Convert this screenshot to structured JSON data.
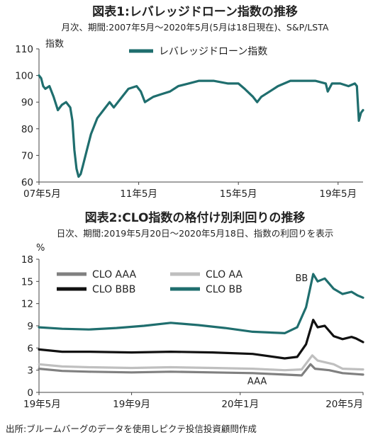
{
  "charts": [
    {
      "title": "図表1:レバレッジドローン指数の推移",
      "subtitle": "月次、期間:2007年5月〜2020年5月(5月は18日現在)、S&P/LSTA",
      "unit_label": "指数"
    },
    {
      "title": "図表2:CLO指数の格付け別利回りの推移",
      "subtitle": "日次、期間:2019年5月20日〜2020年5月18日、指数の利回りを表示",
      "unit_label": "%"
    }
  ],
  "source": "出所:ブルームバーグのデータを使用しピクテ投信投資顧問作成",
  "chart_data": [
    {
      "type": "line",
      "ylim": [
        60,
        110
      ],
      "yticks": [
        60,
        70,
        80,
        90,
        100,
        110
      ],
      "x_range": [
        "2007-05",
        "2020-05"
      ],
      "xticks": [
        {
          "value": "2007-05",
          "label": "07年5月"
        },
        {
          "value": "2011-05",
          "label": "11年5月"
        },
        {
          "value": "2015-05",
          "label": "15年5月"
        },
        {
          "value": "2019-05",
          "label": "19年5月"
        }
      ],
      "legend_position": "top-center",
      "series": [
        {
          "name": "レバレッジドローン指数",
          "color": "#1f6e6e",
          "points": [
            [
              "2007-05",
              100
            ],
            [
              "2007-06",
              99
            ],
            [
              "2007-07",
              96
            ],
            [
              "2007-08",
              95
            ],
            [
              "2007-10",
              96
            ],
            [
              "2007-12",
              92
            ],
            [
              "2008-02",
              87
            ],
            [
              "2008-04",
              89
            ],
            [
              "2008-06",
              90
            ],
            [
              "2008-08",
              88
            ],
            [
              "2008-09",
              83
            ],
            [
              "2008-10",
              72
            ],
            [
              "2008-11",
              65
            ],
            [
              "2008-12",
              62
            ],
            [
              "2009-01",
              63
            ],
            [
              "2009-02",
              66
            ],
            [
              "2009-04",
              72
            ],
            [
              "2009-06",
              78
            ],
            [
              "2009-09",
              84
            ],
            [
              "2009-12",
              87
            ],
            [
              "2010-03",
              90
            ],
            [
              "2010-05",
              88
            ],
            [
              "2010-08",
              91
            ],
            [
              "2010-12",
              95
            ],
            [
              "2011-04",
              96
            ],
            [
              "2011-06",
              94
            ],
            [
              "2011-08",
              90
            ],
            [
              "2011-10",
              91
            ],
            [
              "2011-12",
              92
            ],
            [
              "2012-04",
              93
            ],
            [
              "2012-08",
              94
            ],
            [
              "2012-12",
              96
            ],
            [
              "2013-05",
              97
            ],
            [
              "2013-10",
              98
            ],
            [
              "2014-05",
              98
            ],
            [
              "2014-12",
              97
            ],
            [
              "2015-05",
              97
            ],
            [
              "2015-08",
              95
            ],
            [
              "2015-12",
              92
            ],
            [
              "2016-02",
              90
            ],
            [
              "2016-04",
              92
            ],
            [
              "2016-08",
              94
            ],
            [
              "2016-12",
              96
            ],
            [
              "2017-06",
              98
            ],
            [
              "2017-12",
              98
            ],
            [
              "2018-06",
              98
            ],
            [
              "2018-11",
              97
            ],
            [
              "2018-12",
              94
            ],
            [
              "2019-02",
              97
            ],
            [
              "2019-06",
              97
            ],
            [
              "2019-10",
              96
            ],
            [
              "2020-01",
              97
            ],
            [
              "2020-02",
              96
            ],
            [
              "2020-03",
              83
            ],
            [
              "2020-04",
              86
            ],
            [
              "2020-05",
              87
            ]
          ]
        }
      ]
    },
    {
      "type": "line",
      "ylim": [
        0,
        18
      ],
      "yticks": [
        0,
        3,
        6,
        9,
        12,
        15,
        18
      ],
      "x_range": [
        "2019-05-20",
        "2020-05-18"
      ],
      "xticks": [
        {
          "value": "2019-05-20",
          "label": "19年5月"
        },
        {
          "value": "2019-09-01",
          "label": "19年9月"
        },
        {
          "value": "2020-01-01",
          "label": "20年1月"
        },
        {
          "value": "2020-05-18",
          "label": "20年5月"
        }
      ],
      "annotations": [
        {
          "text": "BB",
          "x": "2020-03-10",
          "y": 15.5
        },
        {
          "text": "AAA",
          "x": "2020-01-20",
          "y": 1.6
        }
      ],
      "legend_position": "top-left",
      "series": [
        {
          "name": "CLO AAA",
          "color": "#808080",
          "points": [
            [
              "2019-05-20",
              3.2
            ],
            [
              "2019-06-15",
              2.9
            ],
            [
              "2019-07-15",
              2.8
            ],
            [
              "2019-09-01",
              2.7
            ],
            [
              "2019-10-15",
              2.8
            ],
            [
              "2019-12-01",
              2.7
            ],
            [
              "2020-01-15",
              2.6
            ],
            [
              "2020-02-20",
              2.4
            ],
            [
              "2020-03-10",
              2.3
            ],
            [
              "2020-03-20",
              3.8
            ],
            [
              "2020-03-25",
              3.2
            ],
            [
              "2020-04-10",
              3.0
            ],
            [
              "2020-04-25",
              2.6
            ],
            [
              "2020-05-18",
              2.4
            ]
          ]
        },
        {
          "name": "CLO AA",
          "color": "#bfbfbf",
          "points": [
            [
              "2019-05-20",
              3.8
            ],
            [
              "2019-06-15",
              3.5
            ],
            [
              "2019-07-15",
              3.4
            ],
            [
              "2019-09-01",
              3.3
            ],
            [
              "2019-10-15",
              3.4
            ],
            [
              "2019-12-01",
              3.3
            ],
            [
              "2020-01-15",
              3.2
            ],
            [
              "2020-02-20",
              3.0
            ],
            [
              "2020-03-10",
              3.1
            ],
            [
              "2020-03-22",
              5.0
            ],
            [
              "2020-03-28",
              4.3
            ],
            [
              "2020-04-15",
              3.8
            ],
            [
              "2020-04-25",
              3.2
            ],
            [
              "2020-05-18",
              3.1
            ]
          ]
        },
        {
          "name": "CLO BBB",
          "color": "#111111",
          "points": [
            [
              "2019-05-20",
              5.8
            ],
            [
              "2019-06-15",
              5.5
            ],
            [
              "2019-07-15",
              5.5
            ],
            [
              "2019-09-01",
              5.4
            ],
            [
              "2019-10-15",
              5.5
            ],
            [
              "2019-12-01",
              5.4
            ],
            [
              "2020-01-15",
              5.2
            ],
            [
              "2020-02-20",
              4.6
            ],
            [
              "2020-03-05",
              4.8
            ],
            [
              "2020-03-15",
              6.5
            ],
            [
              "2020-03-23",
              9.8
            ],
            [
              "2020-03-28",
              8.8
            ],
            [
              "2020-04-05",
              9.0
            ],
            [
              "2020-04-15",
              7.6
            ],
            [
              "2020-04-25",
              7.2
            ],
            [
              "2020-05-05",
              7.5
            ],
            [
              "2020-05-10",
              7.3
            ],
            [
              "2020-05-18",
              6.8
            ]
          ]
        },
        {
          "name": "CLO BB",
          "color": "#1f6e6e",
          "points": [
            [
              "2019-05-20",
              8.8
            ],
            [
              "2019-06-15",
              8.6
            ],
            [
              "2019-07-15",
              8.5
            ],
            [
              "2019-08-15",
              8.7
            ],
            [
              "2019-09-15",
              9.0
            ],
            [
              "2019-10-15",
              9.4
            ],
            [
              "2019-11-15",
              9.1
            ],
            [
              "2019-12-15",
              8.7
            ],
            [
              "2020-01-15",
              8.2
            ],
            [
              "2020-02-20",
              8.0
            ],
            [
              "2020-03-05",
              8.8
            ],
            [
              "2020-03-15",
              11.5
            ],
            [
              "2020-03-23",
              16.0
            ],
            [
              "2020-03-28",
              15.0
            ],
            [
              "2020-04-05",
              15.4
            ],
            [
              "2020-04-15",
              14.0
            ],
            [
              "2020-04-25",
              13.3
            ],
            [
              "2020-05-05",
              13.6
            ],
            [
              "2020-05-12",
              13.1
            ],
            [
              "2020-05-18",
              12.8
            ]
          ]
        }
      ]
    }
  ]
}
